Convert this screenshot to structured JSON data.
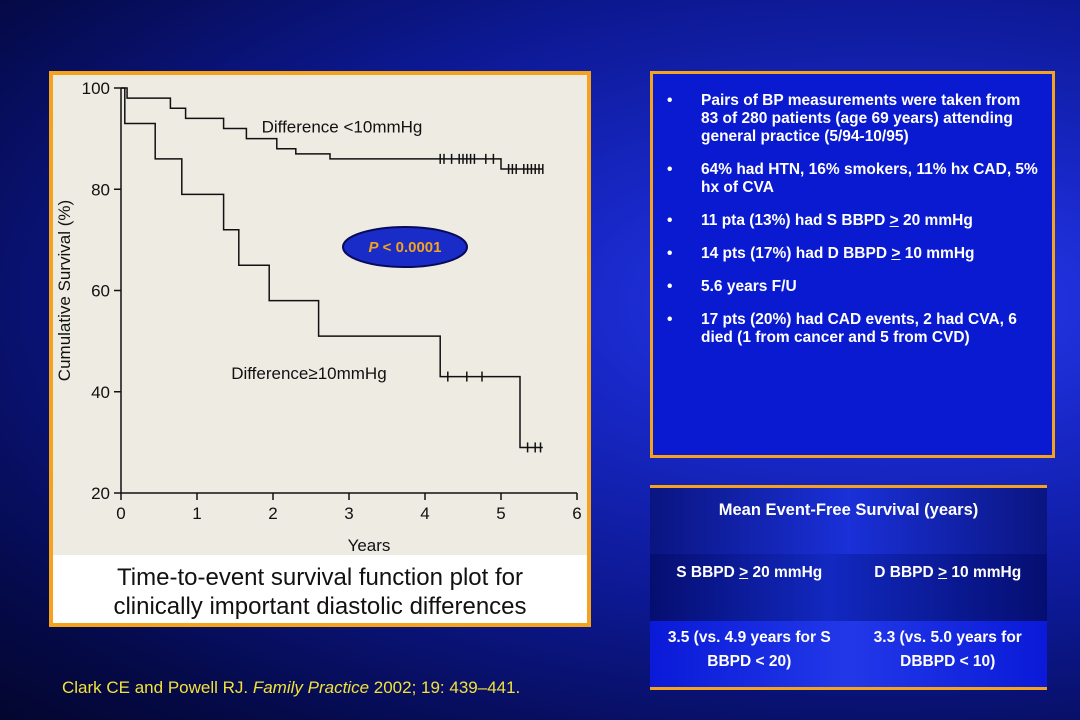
{
  "chart_data": {
    "type": "line",
    "step": true,
    "xlabel": "Years",
    "ylabel": "Cumulative Survival (%)",
    "xlim": [
      0,
      6
    ],
    "ylim": [
      20,
      100
    ],
    "x_ticks": [
      "0",
      "1",
      "2",
      "3",
      "4",
      "5",
      "6"
    ],
    "y_ticks": [
      "20",
      "40",
      "60",
      "80",
      "100"
    ],
    "grid": false,
    "annotation": {
      "italic": "P",
      "rest": " < 0.0001"
    },
    "series": [
      {
        "name": "Difference <10mmHg",
        "steps": [
          [
            0,
            100
          ],
          [
            0.08,
            98
          ],
          [
            0.65,
            96
          ],
          [
            0.85,
            94
          ],
          [
            1.35,
            92
          ],
          [
            1.65,
            90
          ],
          [
            2.05,
            88
          ],
          [
            2.3,
            87
          ],
          [
            2.75,
            86
          ],
          [
            5.0,
            84
          ]
        ],
        "end": 5.55,
        "censored": [
          4.2,
          4.25,
          4.35,
          4.45,
          4.5,
          4.55,
          4.6,
          4.65,
          4.8,
          4.9,
          5.1,
          5.15,
          5.2,
          5.3,
          5.35,
          5.4,
          5.45,
          5.5,
          5.55
        ]
      },
      {
        "name": "Difference≥10mmHg",
        "steps": [
          [
            0,
            100
          ],
          [
            0.05,
            93
          ],
          [
            0.45,
            86
          ],
          [
            0.8,
            79
          ],
          [
            1.35,
            72
          ],
          [
            1.55,
            65
          ],
          [
            1.95,
            58
          ],
          [
            2.6,
            51
          ],
          [
            4.2,
            43
          ],
          [
            5.25,
            29
          ]
        ],
        "end": 5.55,
        "censored": [
          4.3,
          4.55,
          4.75,
          5.35,
          5.45,
          5.52
        ]
      }
    ]
  },
  "caption": [
    "Time-to-event survival function plot for",
    "clinically important diastolic differences"
  ],
  "bullets": [
    "Pairs of BP measurements were taken from 83 of 280 patients (age 69 years) attending general practice (5/94-10/95)",
    "64% had HTN, 16% smokers, 11% hx CAD, 5% hx of CVA",
    "11 pta (13%) had S BBPD > 20 mmHg",
    "14 pts (17%) had D BBPD > 10 mmHg",
    "5.6 years F/U",
    "17 pts (20%) had CAD events, 2 had CVA, 6 died (1 from cancer and 5 from CVD)"
  ],
  "bullet_symbol": "•",
  "table": {
    "title": "Mean Event-Free Survival (years)",
    "headers": [
      "S BBPD > 20 mmHg",
      "D BBPD > 10 mmHg"
    ],
    "values": [
      "3.5 (vs. 4.9 years for S BBPD < 20)",
      "3.3 (vs. 5.0 years for DBBPD < 10)"
    ]
  },
  "citation": {
    "authors": "Clark CE and Powell RJ. ",
    "journal": "Family Practice",
    "details": " 2002; 19: 439–441."
  },
  "colors": {
    "border": "#f5a21c",
    "citation": "#f2e23a",
    "badge_fill": "#1a2cc8",
    "badge_text": "#f5a21c"
  }
}
